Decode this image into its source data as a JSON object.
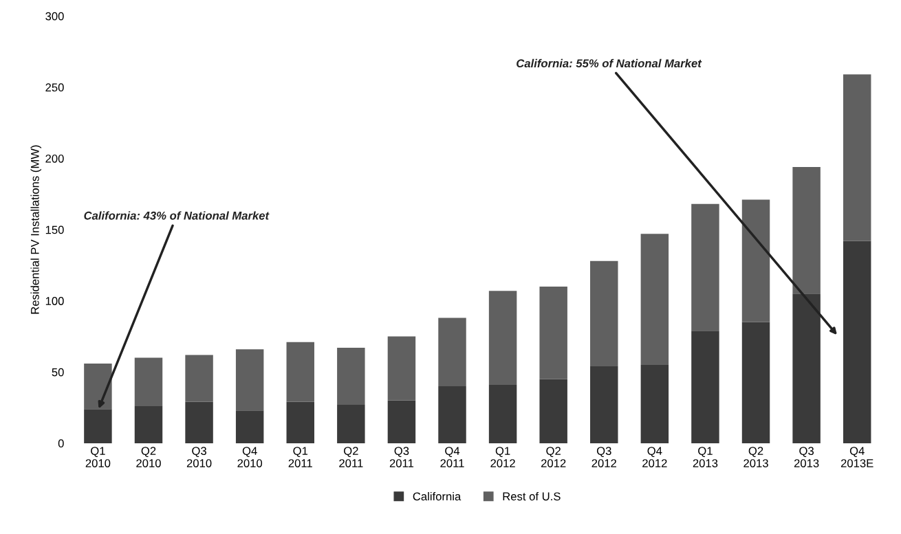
{
  "chart_data": {
    "type": "bar",
    "stacked": true,
    "ylabel": "Residential PV Installations (MW)",
    "categories": [
      "Q1\n2010",
      "Q2\n2010",
      "Q3\n2010",
      "Q4\n2010",
      "Q1\n2011",
      "Q2\n2011",
      "Q3\n2011",
      "Q4\n2011",
      "Q1\n2012",
      "Q2\n2012",
      "Q3\n2012",
      "Q4\n2012",
      "Q1\n2013",
      "Q2\n2013",
      "Q3\n2013",
      "Q4\n2013E"
    ],
    "series": [
      {
        "name": "California",
        "color": "#3a3a3a",
        "values": [
          24,
          26,
          29,
          23,
          29,
          27,
          30,
          40,
          41,
          45,
          54,
          55,
          79,
          85,
          105,
          142
        ]
      },
      {
        "name": "Rest of U.S",
        "color": "#606060",
        "values": [
          32,
          34,
          33,
          43,
          42,
          40,
          45,
          48,
          66,
          65,
          74,
          92,
          89,
          86,
          89,
          117
        ]
      }
    ],
    "ylim": [
      0,
      300
    ],
    "yticks": [
      0,
      50,
      100,
      150,
      200,
      250,
      300
    ],
    "grid": false,
    "legend": "bottom",
    "annotations": [
      {
        "text": "California: 43% of National Market",
        "x": "Q1\n2010",
        "y": 23
      },
      "California: 55% of National Market"
    ]
  }
}
